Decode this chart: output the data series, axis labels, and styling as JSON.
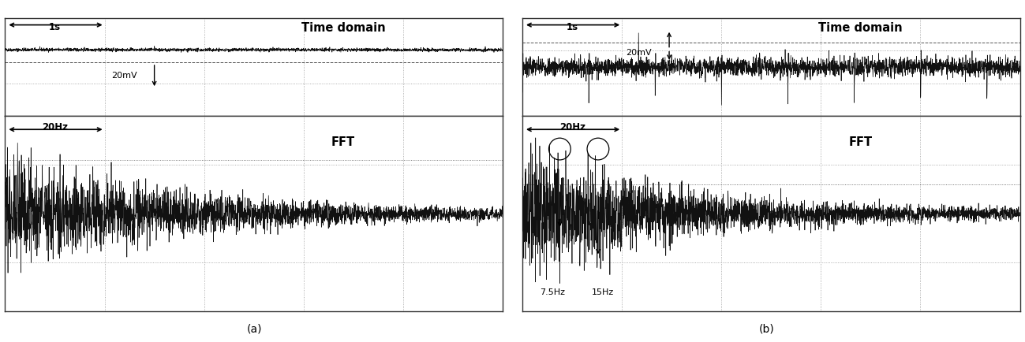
{
  "fig_width": 12.99,
  "fig_height": 4.35,
  "dpi": 100,
  "background_color": "#ffffff",
  "panel_bg": "#ffffff",
  "grid_color": "#888888",
  "signal_color": "#111111",
  "label_a": "(a)",
  "label_b": "(b)",
  "title_time": "Time domain",
  "title_fft": "FFT",
  "arrow_1s": "1s",
  "arrow_20mV_a": "20mV",
  "arrow_20Hz_a": "20Hz",
  "arrow_20mV_b": "20mV",
  "arrow_20Hz_b": "20Hz",
  "label_75hz": "7.5Hz",
  "label_15hz": "15Hz"
}
